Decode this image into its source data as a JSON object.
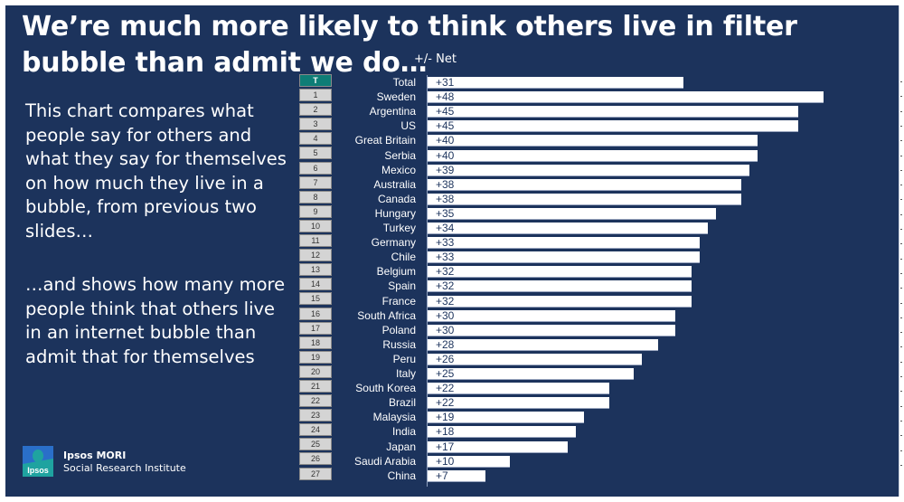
{
  "slide": {
    "title": "We’re much more likely to think others live in filter bubble than admit we do…",
    "body_paragraph_1": "This chart compares what people say for others and what they say for themselves on how much they live in a bubble, from previous two slides…",
    "body_paragraph_2": "…and shows how many more people think that others live in an internet bubble than admit that for themselves",
    "logo": {
      "icon": "ipsos-logo-icon",
      "icon_text": "Ipsos",
      "brand": "Ipsos MORI",
      "division": "Social Research Institute"
    },
    "colors": {
      "background": "#1c335c",
      "bar": "#ffffff",
      "total_row_badge": "#0e7d76",
      "row_badge": "#d4d4d4"
    }
  },
  "chart_data": {
    "type": "bar",
    "orientation": "horizontal",
    "title": "+/- Net",
    "xlabel": "",
    "ylabel": "",
    "xlim": [
      0,
      50
    ],
    "grid": false,
    "legend": "none",
    "row_numbers": [
      "T",
      "1",
      "2",
      "3",
      "4",
      "5",
      "6",
      "7",
      "8",
      "9",
      "10",
      "11",
      "12",
      "13",
      "14",
      "15",
      "16",
      "17",
      "18",
      "19",
      "20",
      "21",
      "22",
      "23",
      "24",
      "25",
      "26",
      "27"
    ],
    "categories": [
      "Total",
      "Sweden",
      "Argentina",
      "US",
      "Great Britain",
      "Serbia",
      "Mexico",
      "Australia",
      "Canada",
      "Hungary",
      "Turkey",
      "Germany",
      "Chile",
      "Belgium",
      "Spain",
      "France",
      "South Africa",
      "Poland",
      "Russia",
      "Peru",
      "Italy",
      "South Korea",
      "Brazil",
      "Malaysia",
      "India",
      "Japan",
      "Saudi Arabia",
      "China"
    ],
    "values": [
      31,
      48,
      45,
      45,
      40,
      40,
      39,
      38,
      38,
      35,
      34,
      33,
      33,
      32,
      32,
      32,
      30,
      30,
      28,
      26,
      25,
      22,
      22,
      19,
      18,
      17,
      10,
      7
    ],
    "data_labels": [
      "+31",
      "+48",
      "+45",
      "+45",
      "+40",
      "+40",
      "+39",
      "+38",
      "+38",
      "+35",
      "+34",
      "+33",
      "+33",
      "+32",
      "+32",
      "+32",
      "+30",
      "+30",
      "+28",
      "+26",
      "+25",
      "+22",
      "+22",
      "+19",
      "+18",
      "+17",
      "+10",
      "+7"
    ]
  }
}
